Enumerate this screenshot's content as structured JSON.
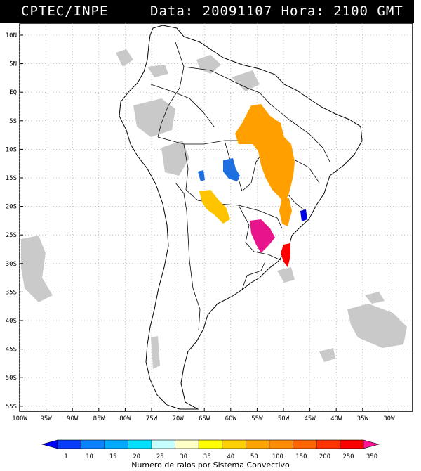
{
  "header": {
    "agency": "CPTEC/INPE",
    "datetime": "Data: 20091107 Hora: 2100 GMT"
  },
  "latitude_labels": [
    "10N",
    "5N",
    "EQ",
    "5S",
    "10S",
    "15S",
    "20S",
    "25S",
    "30S",
    "35S",
    "40S",
    "45S",
    "50S",
    "55S"
  ],
  "longitude_labels": [
    "100W",
    "95W",
    "90W",
    "85W",
    "80W",
    "75W",
    "70W",
    "65W",
    "60W",
    "55W",
    "50W",
    "45W",
    "40W",
    "35W",
    "30W"
  ],
  "colorbar": {
    "labels": [
      "1",
      "10",
      "15",
      "20",
      "25",
      "30",
      "35",
      "40",
      "50",
      "100",
      "150",
      "200",
      "250",
      "350"
    ],
    "colors": [
      "#0000ff",
      "#0a3cff",
      "#0a82ff",
      "#00aaff",
      "#00e0ff",
      "#c8ffff",
      "#ffffc8",
      "#ffff00",
      "#ffd000",
      "#ffa500",
      "#ff8c00",
      "#ff6400",
      "#ff3200",
      "#ff0000",
      "#ff1493"
    ],
    "caption": "Numero de raios por Sistema Convectivo"
  },
  "legend_colors": {
    "cloud": "#bdbdbd",
    "blue_system": "#1e6fe0",
    "yellow_system": "#ffc400",
    "orange_system": "#ffa000",
    "magenta_system": "#e8148c",
    "red_system": "#ff0000",
    "navy_system": "#0000e6"
  }
}
